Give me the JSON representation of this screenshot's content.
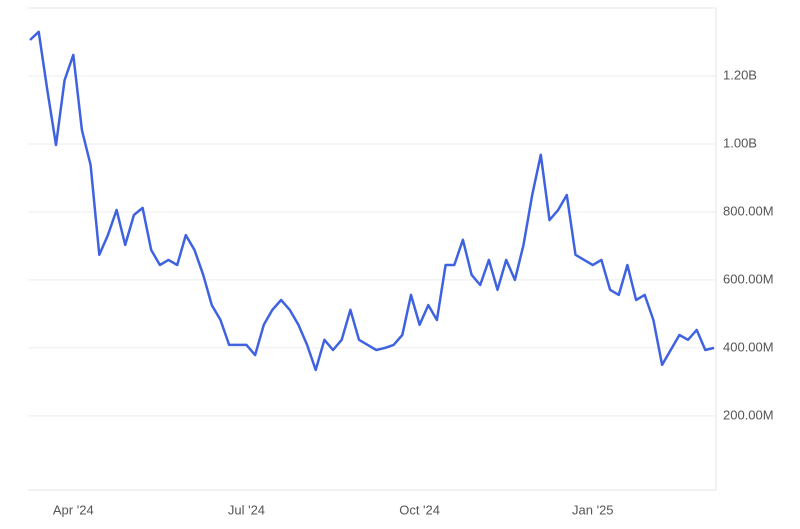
{
  "chart_data": {
    "type": "line",
    "categories": [
      null,
      null,
      null,
      null,
      null,
      "Apr '24",
      null,
      null,
      null,
      null,
      null,
      null,
      null,
      null,
      null,
      null,
      null,
      null,
      null,
      null,
      null,
      null,
      null,
      null,
      null,
      "Jul '24",
      null,
      null,
      null,
      null,
      null,
      null,
      null,
      null,
      null,
      null,
      null,
      null,
      null,
      null,
      null,
      null,
      null,
      null,
      null,
      "Oct '24",
      null,
      null,
      null,
      null,
      null,
      null,
      null,
      null,
      null,
      null,
      null,
      null,
      null,
      null,
      null,
      null,
      null,
      null,
      null,
      "Jan '25",
      null,
      null,
      null,
      null,
      null,
      null,
      null,
      null,
      null,
      null,
      null,
      null,
      null,
      null
    ],
    "series": [
      {
        "color": "#3f63e0",
        "values": [
          1306000000,
          1330000000,
          1159000000,
          997000000,
          1188000000,
          1262000000,
          1041000000,
          938000000,
          674000000,
          732000000,
          806000000,
          703000000,
          791000000,
          812000000,
          688000000,
          644000000,
          659000000,
          644000000,
          732000000,
          688000000,
          615000000,
          526000000,
          482000000,
          409000000,
          409000000,
          409000000,
          379000000,
          468000000,
          512000000,
          541000000,
          512000000,
          468000000,
          409000000,
          335000000,
          424000000,
          394000000,
          424000000,
          512000000,
          424000000,
          409000000,
          394000000,
          400000000,
          409000000,
          438000000,
          556000000,
          468000000,
          526000000,
          482000000,
          644000000,
          644000000,
          718000000,
          615000000,
          585000000,
          659000000,
          571000000,
          659000000,
          600000000,
          703000000,
          850000000,
          968000000,
          776000000,
          806000000,
          850000000,
          674000000,
          659000000,
          644000000,
          659000000,
          571000000,
          556000000,
          644000000,
          541000000,
          556000000,
          482000000,
          350000000,
          394000000,
          438000000,
          424000000,
          453000000,
          394000000,
          400000000
        ]
      }
    ],
    "ylim": [
      -18000000,
      1400000000
    ],
    "yticks": [
      {
        "value": 200000000,
        "label": "200.00M"
      },
      {
        "value": 400000000,
        "label": "400.00M"
      },
      {
        "value": 600000000,
        "label": "600.00M"
      },
      {
        "value": 800000000,
        "label": "800.00M"
      },
      {
        "value": 1000000000,
        "label": "1.00B"
      },
      {
        "value": 1200000000,
        "label": "1.20B"
      }
    ],
    "grid": true
  }
}
